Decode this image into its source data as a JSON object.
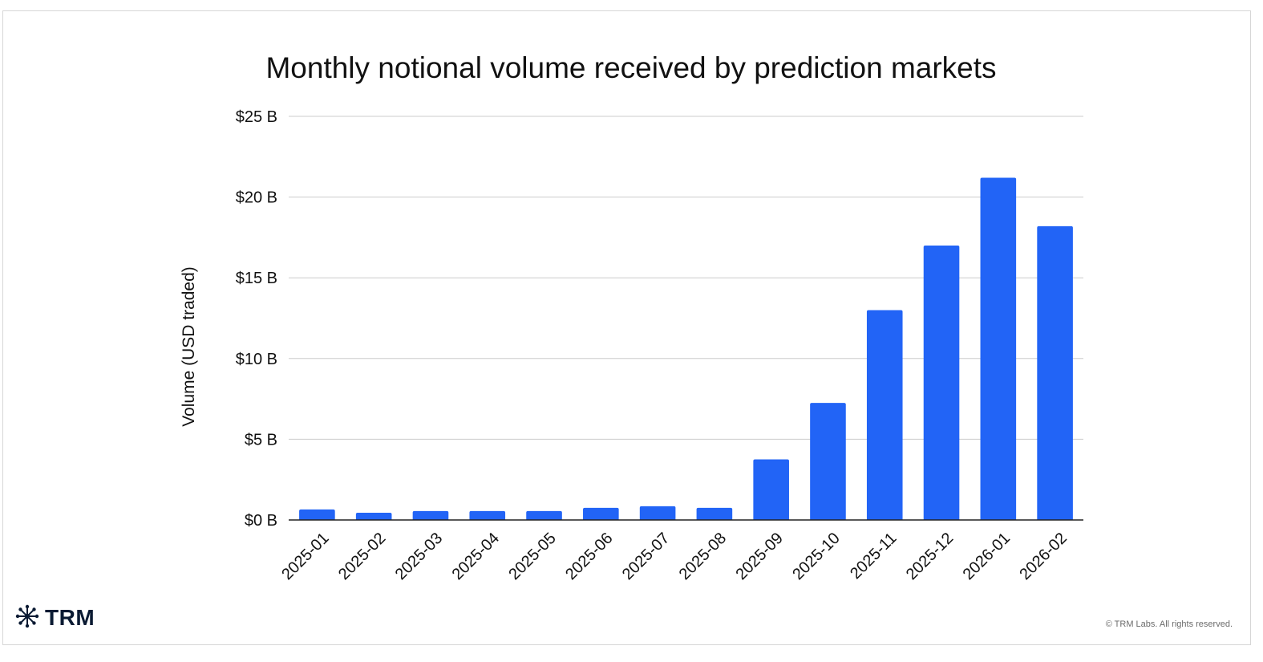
{
  "chart_data": {
    "type": "bar",
    "title": "Monthly notional volume received by prediction markets",
    "xlabel": "",
    "ylabel": "Volume (USD traded)",
    "ylim": [
      0,
      25
    ],
    "yticks": [
      {
        "value": 0,
        "label": "$0 B"
      },
      {
        "value": 5,
        "label": "$5 B"
      },
      {
        "value": 10,
        "label": "$10 B"
      },
      {
        "value": 15,
        "label": "$15 B"
      },
      {
        "value": 20,
        "label": "$20 B"
      },
      {
        "value": 25,
        "label": "$25 B"
      }
    ],
    "categories": [
      "2025-01",
      "2025-02",
      "2025-03",
      "2025-04",
      "2025-05",
      "2025-06",
      "2025-07",
      "2025-08",
      "2025-09",
      "2025-10",
      "2025-11",
      "2025-12",
      "2026-01",
      "2026-02"
    ],
    "values": [
      0.65,
      0.45,
      0.55,
      0.55,
      0.55,
      0.75,
      0.85,
      0.75,
      3.75,
      7.25,
      13.0,
      17.0,
      21.2,
      18.2
    ],
    "grid": true,
    "legend": "none",
    "bar_color": "#2264f6"
  },
  "branding": {
    "logo_text": "TRM",
    "logo_icon": "asterisk-network-icon",
    "copyright": "© TRM Labs. All rights reserved."
  }
}
